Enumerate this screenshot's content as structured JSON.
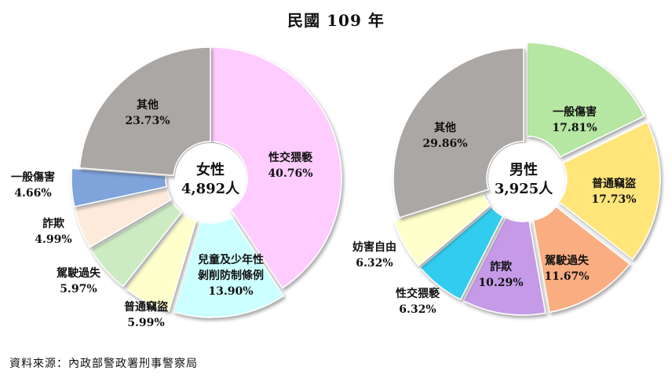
{
  "title": "民國 109 年",
  "source": "資料來源：內政部警政署刑事警察局",
  "chart_data": [
    {
      "type": "pie",
      "variant": "doughnut",
      "center_label": [
        "女性",
        "4,892人"
      ],
      "categories": [
        "性交猥褻",
        "兒童及少年性剝削防制條例",
        "普通竊盜",
        "駕駛過失",
        "詐欺",
        "一般傷害",
        "其他"
      ],
      "label_lines": [
        [
          "性交猥褻"
        ],
        [
          "兒童及少年性",
          "剝削防制條例"
        ],
        [
          "普通竊盜"
        ],
        [
          "駕駛過失"
        ],
        [
          "詐欺"
        ],
        [
          "一般傷害"
        ],
        [
          "其他"
        ]
      ],
      "value_labels": [
        "40.76%",
        "13.90%",
        "5.99%",
        "5.97%",
        "4.99%",
        "4.66%",
        "23.73%"
      ],
      "values": [
        40.76,
        13.9,
        5.99,
        5.97,
        4.99,
        4.66,
        23.73
      ],
      "colors": [
        "#FFCCFF",
        "#CCFFFF",
        "#FFFFCC",
        "#CCEBC2",
        "#FDEADA",
        "#7FA3DB",
        "#ABA7A5"
      ],
      "exploded": [
        false,
        true,
        true,
        true,
        true,
        true,
        false
      ]
    },
    {
      "type": "pie",
      "variant": "doughnut",
      "center_label": [
        "男性",
        "3,925人"
      ],
      "categories": [
        "一般傷害",
        "普通竊盜",
        "駕駛過失",
        "詐欺",
        "性交猥褻",
        "妨害自由",
        "其他"
      ],
      "label_lines": [
        [
          "一般傷害"
        ],
        [
          "普通竊盜"
        ],
        [
          "駕駛過失"
        ],
        [
          "詐欺"
        ],
        [
          "性交猥褻"
        ],
        [
          "妨害自由"
        ],
        [
          "其他"
        ]
      ],
      "value_labels": [
        "17.81%",
        "17.73%",
        "11.67%",
        "10.29%",
        "6.32%",
        "6.32%",
        "29.86%"
      ],
      "values": [
        17.81,
        17.73,
        11.67,
        10.29,
        6.32,
        6.32,
        29.86
      ],
      "colors": [
        "#B5E6A2",
        "#FFE57A",
        "#FBAD82",
        "#C59BE8",
        "#33CCEE",
        "#FFFFCC",
        "#ABA7A5"
      ],
      "exploded": [
        true,
        true,
        true,
        true,
        true,
        true,
        false
      ]
    }
  ]
}
